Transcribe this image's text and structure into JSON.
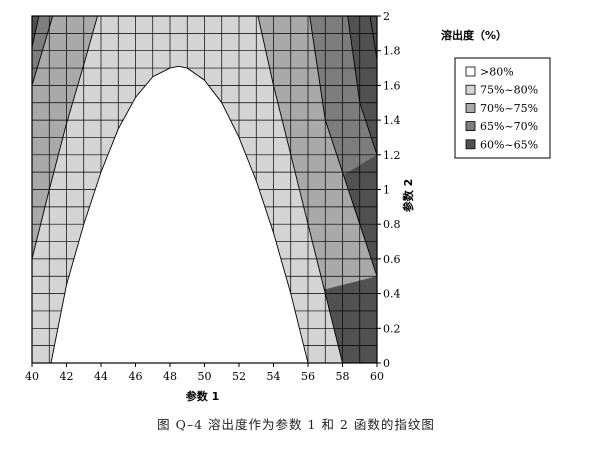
{
  "chart_data": {
    "type": "contour",
    "title": "",
    "xlabel": "参数 1",
    "ylabel": "参数 2",
    "xlim": [
      40,
      60
    ],
    "ylim": [
      0,
      2
    ],
    "xticks": [
      "40",
      "42",
      "44",
      "46",
      "48",
      "50",
      "52",
      "54",
      "56",
      "58",
      "60"
    ],
    "yticks": [
      "0",
      "0.2",
      "0.4",
      "0.6",
      "0.8",
      "1",
      "1.2",
      "1.4",
      "1.6",
      "1.8",
      "2"
    ],
    "grid": true,
    "legend": {
      "title": "溶出度（%）",
      "placement": "right",
      "entries": [
        {
          "label": ">80%",
          "color": "#ffffff"
        },
        {
          "label": "75%~80%",
          "color": "#d4d4d4"
        },
        {
          "label": "70%~75%",
          "color": "#a9a9a9"
        },
        {
          "label": "65%~70%",
          "color": "#7d7d7d"
        },
        {
          "label": "60%~65%",
          "color": "#515151"
        }
      ]
    },
    "regions": [
      {
        "label": ">80%",
        "boundary": [
          [
            41.1,
            0
          ],
          [
            42,
            0.45
          ],
          [
            43,
            0.8
          ],
          [
            44,
            1.1
          ],
          [
            45,
            1.35
          ],
          [
            46,
            1.53
          ],
          [
            47,
            1.65
          ],
          [
            48,
            1.7
          ],
          [
            48.5,
            1.71
          ],
          [
            49,
            1.7
          ],
          [
            50,
            1.63
          ],
          [
            51,
            1.5
          ],
          [
            52,
            1.3
          ],
          [
            53,
            1.05
          ],
          [
            54,
            0.75
          ],
          [
            55,
            0.4
          ],
          [
            56,
            0
          ]
        ]
      },
      {
        "label": "75%~80%",
        "left_boundary": [
          [
            40,
            0.6
          ],
          [
            41,
            1.0
          ],
          [
            42,
            1.38
          ],
          [
            43,
            1.72
          ],
          [
            43.8,
            2.0
          ]
        ],
        "right_boundary": [
          [
            58,
            0
          ],
          [
            57,
            0.4
          ],
          [
            56,
            0.8
          ],
          [
            55,
            1.2
          ],
          [
            54,
            1.6
          ],
          [
            53.1,
            2.0
          ]
        ]
      },
      {
        "label": "70%~75%",
        "left_boundary": [
          [
            40,
            1.6
          ],
          [
            40.6,
            1.8
          ],
          [
            41.2,
            2.0
          ]
        ],
        "right_boundary": [
          [
            60,
            0.5
          ],
          [
            59,
            0.8
          ],
          [
            58,
            1.1
          ],
          [
            57,
            1.4
          ],
          [
            56.1,
            2.0
          ]
        ]
      },
      {
        "label": "65%~70%",
        "left_boundary": [
          [
            40,
            1.82
          ],
          [
            40.4,
            2.0
          ]
        ],
        "right_boundary": [
          [
            60,
            1.2
          ],
          [
            59,
            1.5
          ],
          [
            58.3,
            2.0
          ]
        ]
      },
      {
        "label": "60%~65%",
        "left_boundary": [
          [
            40,
            2.0
          ]
        ],
        "right_boundary": [
          [
            60,
            1.75
          ],
          [
            59.6,
            2.0
          ]
        ]
      }
    ]
  },
  "caption": "图 Q–4   溶出度作为参数 1 和 2 函数的指纹图"
}
